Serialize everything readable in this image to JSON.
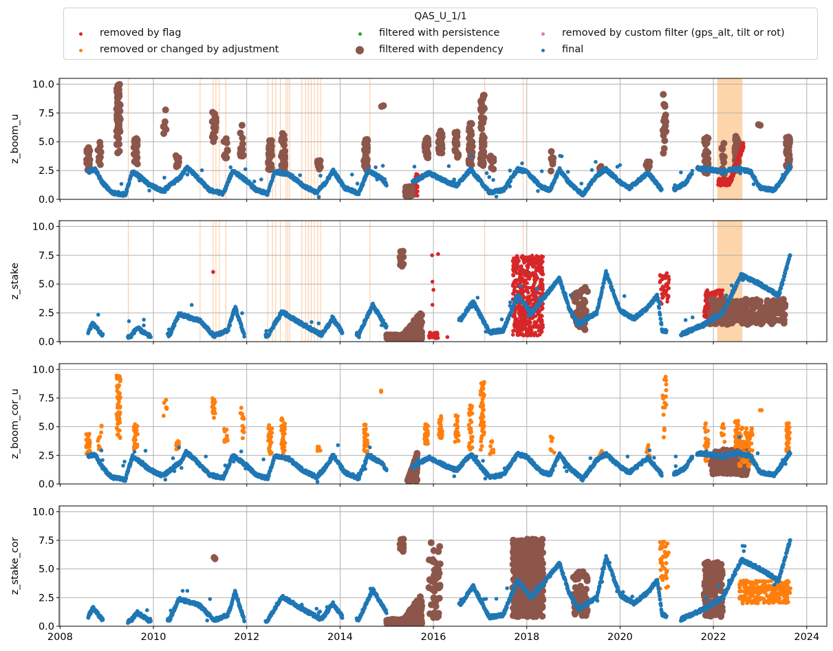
{
  "legend": {
    "title": "QAS_U_1/1",
    "items": [
      {
        "label": "removed by flag",
        "color": "#d62728",
        "size": "small"
      },
      {
        "label": "removed or changed by adjustment",
        "color": "#ff7f0e",
        "size": "small"
      },
      {
        "label": "filtered with persistence",
        "color": "#2ca02c",
        "size": "small"
      },
      {
        "label": "filtered with dependency",
        "color": "#8c564b",
        "size": "large"
      },
      {
        "label": "removed by custom filter (gps_alt, tilt or rot)",
        "color": "#e377c2",
        "size": "small"
      },
      {
        "label": "final",
        "color": "#1f77b4",
        "size": "small"
      }
    ]
  },
  "chart_data": [
    {
      "type": "scatter",
      "ylabel": "z_boom_u",
      "ylim": [
        0,
        10.5
      ],
      "yticks": [
        "0.0",
        "2.5",
        "5.0",
        "7.5",
        "10.0"
      ],
      "grid": true,
      "shaded_windows": [
        [
          2022.08,
          2022.62
        ]
      ],
      "thin_lines": [
        2009.46,
        2011.0,
        2011.28,
        2011.34,
        2011.41,
        2011.55,
        2012.45,
        2012.55,
        2012.62,
        2012.72,
        2012.84,
        2012.88,
        2012.92,
        2013.18,
        2013.26,
        2013.32,
        2013.38,
        2013.45,
        2013.52,
        2013.58,
        2014.64,
        2017.1,
        2017.92
      ],
      "final_profile": [
        [
          2008.6,
          2.4
        ],
        [
          2008.75,
          2.6
        ],
        [
          2008.9,
          1.5
        ],
        [
          2009.1,
          0.6
        ],
        [
          2009.4,
          0.4
        ],
        [
          2009.55,
          2.4
        ],
        [
          2009.7,
          2.0
        ],
        [
          2009.9,
          1.3
        ],
        [
          2010.2,
          0.7
        ],
        [
          2010.6,
          2.0
        ],
        [
          2010.7,
          2.8
        ],
        [
          2010.85,
          2.3
        ],
        [
          2011.2,
          0.8
        ],
        [
          2011.5,
          0.5
        ],
        [
          2011.6,
          1.5
        ],
        [
          2011.7,
          2.5
        ],
        [
          2012.0,
          1.6
        ],
        [
          2012.2,
          0.8
        ],
        [
          2012.45,
          0.5
        ],
        [
          2012.6,
          2.4
        ],
        [
          2012.9,
          2.2
        ],
        [
          2013.2,
          1.2
        ],
        [
          2013.5,
          0.6
        ],
        [
          2013.7,
          1.5
        ],
        [
          2013.85,
          2.5
        ],
        [
          2014.1,
          1.0
        ],
        [
          2014.4,
          0.5
        ],
        [
          2014.6,
          2.5
        ],
        [
          2014.9,
          1.8
        ],
        [
          2015.1,
          0.6
        ],
        [
          2015.7,
          1.8
        ],
        [
          2015.9,
          2.3
        ],
        [
          2016.3,
          1.5
        ],
        [
          2016.5,
          1.2
        ],
        [
          2016.8,
          2.6
        ],
        [
          2017.0,
          1.6
        ],
        [
          2017.2,
          0.6
        ],
        [
          2017.5,
          0.8
        ],
        [
          2017.8,
          2.6
        ],
        [
          2018.0,
          2.4
        ],
        [
          2018.3,
          1.1
        ],
        [
          2018.5,
          0.8
        ],
        [
          2018.7,
          2.6
        ],
        [
          2018.9,
          1.5
        ],
        [
          2019.2,
          0.4
        ],
        [
          2019.5,
          2.1
        ],
        [
          2019.7,
          2.6
        ],
        [
          2020.0,
          1.5
        ],
        [
          2020.2,
          1.0
        ],
        [
          2020.6,
          2.3
        ],
        [
          2020.9,
          0.8
        ],
        [
          2021.0,
          0.5
        ],
        [
          2021.4,
          1.4
        ],
        [
          2021.6,
          2.7
        ],
        [
          2021.9,
          2.6
        ],
        [
          2022.2,
          2.4
        ],
        [
          2022.5,
          2.7
        ],
        [
          2022.8,
          2.4
        ],
        [
          2023.0,
          1.0
        ],
        [
          2023.3,
          0.8
        ],
        [
          2023.45,
          1.6
        ],
        [
          2023.65,
          2.8
        ]
      ]
    },
    {
      "type": "scatter",
      "ylabel": "z_stake",
      "ylim": [
        0,
        10.5
      ],
      "yticks": [
        "0.0",
        "2.5",
        "5.0",
        "7.5",
        "10.0"
      ],
      "grid": true,
      "shaded_windows": [
        [
          2022.08,
          2022.62
        ]
      ],
      "thin_lines": [
        2009.46,
        2011.0,
        2011.28,
        2011.34,
        2011.41,
        2011.55,
        2012.45,
        2012.55,
        2012.62,
        2012.72,
        2012.84,
        2012.88,
        2012.92,
        2013.18,
        2013.26,
        2013.32,
        2013.38,
        2013.45,
        2013.52,
        2013.58,
        2014.64,
        2017.1,
        2017.92
      ],
      "final_profile": [
        [
          2008.6,
          0.8
        ],
        [
          2008.7,
          1.6
        ],
        [
          2008.9,
          0.6
        ],
        [
          2009.5,
          0.4
        ],
        [
          2009.65,
          1.2
        ],
        [
          2009.9,
          0.5
        ],
        [
          2010.35,
          0.6
        ],
        [
          2010.55,
          2.4
        ],
        [
          2011.0,
          1.8
        ],
        [
          2011.3,
          0.5
        ],
        [
          2011.6,
          1.0
        ],
        [
          2011.75,
          3.0
        ],
        [
          2011.95,
          0.5
        ],
        [
          2012.45,
          0.5
        ],
        [
          2012.75,
          2.6
        ],
        [
          2013.2,
          1.5
        ],
        [
          2013.6,
          0.6
        ],
        [
          2013.85,
          2.0
        ],
        [
          2014.05,
          0.8
        ],
        [
          2014.4,
          0.6
        ],
        [
          2014.7,
          3.2
        ],
        [
          2015.0,
          1.2
        ],
        [
          2015.2,
          0.5
        ],
        [
          2016.6,
          2.0
        ],
        [
          2016.85,
          3.5
        ],
        [
          2017.2,
          0.8
        ],
        [
          2017.5,
          1.0
        ],
        [
          2017.8,
          4.0
        ],
        [
          2018.1,
          2.5
        ],
        [
          2018.4,
          4.0
        ],
        [
          2018.7,
          5.5
        ],
        [
          2018.9,
          3.0
        ],
        [
          2019.1,
          1.5
        ],
        [
          2019.5,
          2.5
        ],
        [
          2019.7,
          6.0
        ],
        [
          2020.0,
          2.7
        ],
        [
          2020.3,
          2.0
        ],
        [
          2020.6,
          3.0
        ],
        [
          2020.8,
          4.0
        ],
        [
          2020.9,
          1.0
        ],
        [
          2021.3,
          0.6
        ],
        [
          2021.8,
          1.5
        ],
        [
          2022.2,
          2.5
        ],
        [
          2022.6,
          5.8
        ],
        [
          2023.0,
          5.0
        ],
        [
          2023.4,
          4.0
        ],
        [
          2023.65,
          7.6
        ]
      ]
    },
    {
      "type": "scatter",
      "ylabel": "z_boom_cor_u",
      "ylim": [
        0,
        10.5
      ],
      "yticks": [
        "0.0",
        "2.5",
        "5.0",
        "7.5",
        "10.0"
      ],
      "grid": true,
      "shaded_windows": [],
      "thin_lines": [],
      "final_profile": [
        [
          2008.6,
          2.4
        ],
        [
          2008.75,
          2.6
        ],
        [
          2008.9,
          1.5
        ],
        [
          2009.1,
          0.6
        ],
        [
          2009.4,
          0.4
        ],
        [
          2009.55,
          2.4
        ],
        [
          2009.7,
          2.0
        ],
        [
          2009.9,
          1.3
        ],
        [
          2010.2,
          0.7
        ],
        [
          2010.6,
          2.0
        ],
        [
          2010.7,
          2.8
        ],
        [
          2010.85,
          2.3
        ],
        [
          2011.2,
          0.8
        ],
        [
          2011.5,
          0.5
        ],
        [
          2011.6,
          1.5
        ],
        [
          2011.7,
          2.5
        ],
        [
          2012.0,
          1.6
        ],
        [
          2012.2,
          0.8
        ],
        [
          2012.45,
          0.5
        ],
        [
          2012.6,
          2.4
        ],
        [
          2012.9,
          2.2
        ],
        [
          2013.2,
          1.2
        ],
        [
          2013.5,
          0.6
        ],
        [
          2013.7,
          1.5
        ],
        [
          2013.85,
          2.5
        ],
        [
          2014.1,
          1.0
        ],
        [
          2014.4,
          0.5
        ],
        [
          2014.6,
          2.5
        ],
        [
          2014.9,
          1.8
        ],
        [
          2015.1,
          0.6
        ],
        [
          2015.7,
          1.8
        ],
        [
          2015.9,
          2.3
        ],
        [
          2016.3,
          1.5
        ],
        [
          2016.5,
          1.2
        ],
        [
          2016.8,
          2.6
        ],
        [
          2017.0,
          1.6
        ],
        [
          2017.2,
          0.6
        ],
        [
          2017.5,
          0.8
        ],
        [
          2017.8,
          2.6
        ],
        [
          2018.0,
          2.4
        ],
        [
          2018.3,
          1.1
        ],
        [
          2018.5,
          0.8
        ],
        [
          2018.7,
          2.6
        ],
        [
          2018.9,
          1.5
        ],
        [
          2019.2,
          0.4
        ],
        [
          2019.5,
          2.1
        ],
        [
          2019.7,
          2.6
        ],
        [
          2020.0,
          1.5
        ],
        [
          2020.2,
          1.0
        ],
        [
          2020.6,
          2.3
        ],
        [
          2020.9,
          0.8
        ],
        [
          2021.0,
          0.5
        ],
        [
          2021.4,
          1.4
        ],
        [
          2021.6,
          2.7
        ],
        [
          2021.9,
          2.6
        ],
        [
          2022.2,
          2.4
        ],
        [
          2022.5,
          2.7
        ],
        [
          2022.8,
          2.4
        ],
        [
          2023.0,
          1.0
        ],
        [
          2023.3,
          0.8
        ],
        [
          2023.45,
          1.6
        ],
        [
          2023.65,
          2.8
        ]
      ]
    },
    {
      "type": "scatter",
      "ylabel": "z_stake_cor",
      "ylim": [
        0,
        10.5
      ],
      "yticks": [
        "0.0",
        "2.5",
        "5.0",
        "7.5",
        "10.0"
      ],
      "xticks": [
        "2008",
        "2010",
        "2012",
        "2014",
        "2016",
        "2018",
        "2020",
        "2022",
        "2024"
      ],
      "grid": true,
      "shaded_windows": [],
      "thin_lines": [],
      "final_profile": [
        [
          2008.6,
          0.8
        ],
        [
          2008.7,
          1.6
        ],
        [
          2008.9,
          0.6
        ],
        [
          2009.5,
          0.4
        ],
        [
          2009.65,
          1.2
        ],
        [
          2009.9,
          0.5
        ],
        [
          2010.35,
          0.6
        ],
        [
          2010.55,
          2.4
        ],
        [
          2011.0,
          1.8
        ],
        [
          2011.3,
          0.5
        ],
        [
          2011.6,
          1.0
        ],
        [
          2011.75,
          3.0
        ],
        [
          2011.95,
          0.5
        ],
        [
          2012.45,
          0.5
        ],
        [
          2012.75,
          2.6
        ],
        [
          2013.2,
          1.5
        ],
        [
          2013.6,
          0.6
        ],
        [
          2013.85,
          2.0
        ],
        [
          2014.05,
          0.8
        ],
        [
          2014.4,
          0.6
        ],
        [
          2014.7,
          3.2
        ],
        [
          2015.0,
          1.2
        ],
        [
          2015.2,
          0.5
        ],
        [
          2016.6,
          2.0
        ],
        [
          2016.85,
          3.5
        ],
        [
          2017.2,
          0.8
        ],
        [
          2017.5,
          1.0
        ],
        [
          2017.8,
          4.0
        ],
        [
          2018.1,
          2.5
        ],
        [
          2018.4,
          4.0
        ],
        [
          2018.7,
          5.5
        ],
        [
          2018.9,
          3.0
        ],
        [
          2019.1,
          1.5
        ],
        [
          2019.5,
          2.5
        ],
        [
          2019.7,
          6.0
        ],
        [
          2020.0,
          2.7
        ],
        [
          2020.3,
          2.0
        ],
        [
          2020.6,
          3.0
        ],
        [
          2020.8,
          4.0
        ],
        [
          2020.9,
          1.0
        ],
        [
          2021.3,
          0.6
        ],
        [
          2021.8,
          1.5
        ],
        [
          2022.2,
          2.5
        ],
        [
          2022.6,
          5.8
        ],
        [
          2023.0,
          5.0
        ],
        [
          2023.4,
          4.0
        ],
        [
          2023.65,
          7.6
        ]
      ]
    }
  ]
}
